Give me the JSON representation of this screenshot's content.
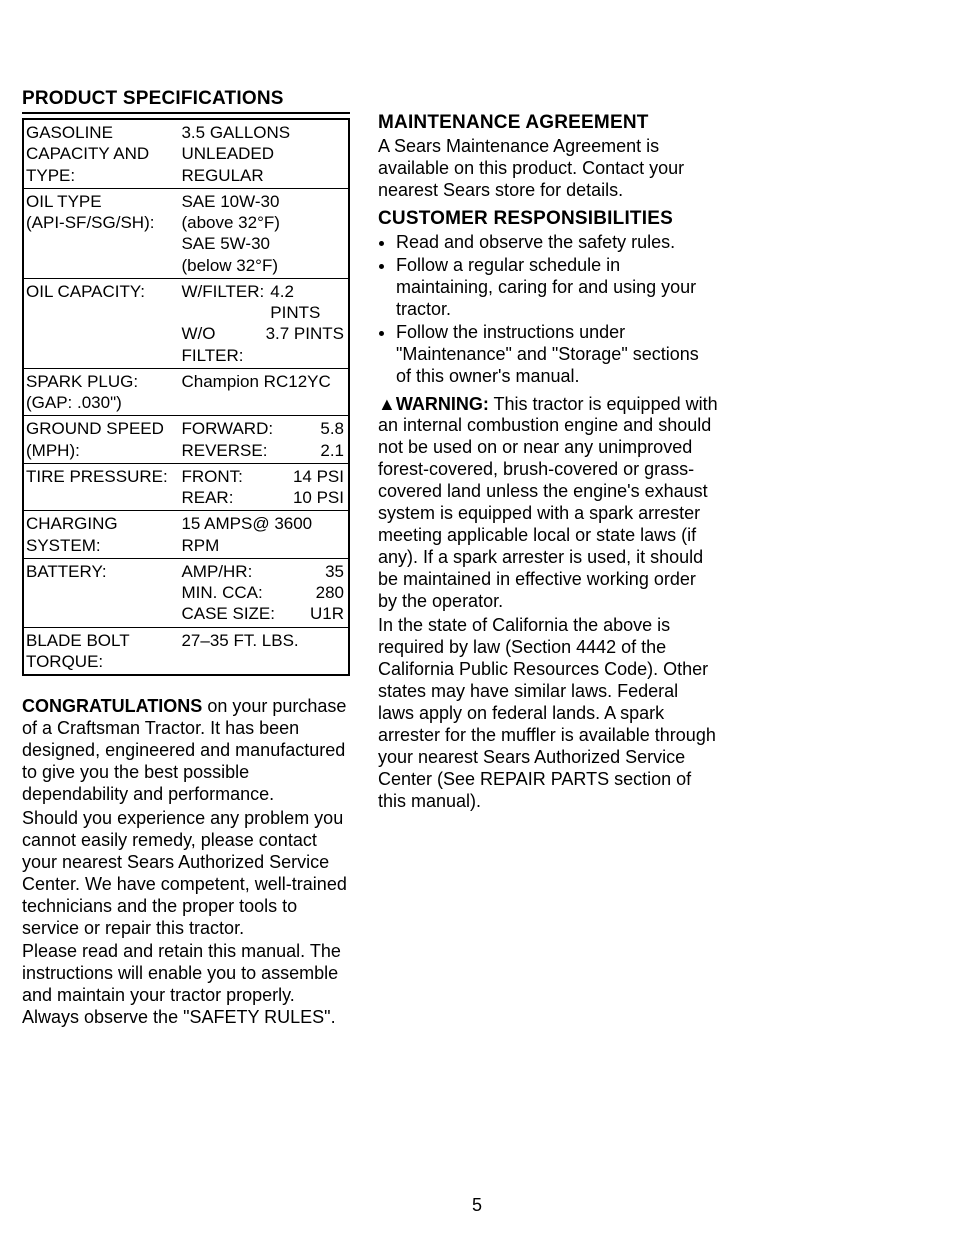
{
  "page_number": "5",
  "left": {
    "heading": "PRODUCT SPECIFICATIONS",
    "specs": [
      {
        "label": "GASOLINE CAPACITY AND TYPE:",
        "value": "3.5 GALLONS\nUNLEADED REGULAR"
      },
      {
        "label": "OIL TYPE\n(API-SF/SG/SH):",
        "value": "SAE 10W-30\n(above 32°F)\nSAE 5W-30\n(below 32°F)"
      },
      {
        "label": "OIL CAPACITY:",
        "value_kv": [
          {
            "k": "W/FILTER:",
            "v": "4.2 PINTS"
          },
          {
            "k": "W/O FILTER:",
            "v": "3.7 PINTS"
          }
        ]
      },
      {
        "label": "SPARK PLUG:\n(GAP: .030\")",
        "value": "Champion RC12YC"
      },
      {
        "label": "GROUND SPEED (MPH):",
        "value_kv": [
          {
            "k": "FORWARD:",
            "v": "5.8"
          },
          {
            "k": "REVERSE:",
            "v": "2.1"
          }
        ]
      },
      {
        "label": "TIRE PRESSURE:",
        "value_kv": [
          {
            "k": "FRONT:",
            "v": "14 PSI"
          },
          {
            "k": "REAR:",
            "v": "10 PSI"
          }
        ]
      },
      {
        "label": "CHARGING SYSTEM:",
        "value": "15 AMPS@ 3600 RPM"
      },
      {
        "label": "BATTERY:",
        "value_kv": [
          {
            "k": "AMP/HR:",
            "v": "35"
          },
          {
            "k": "MIN. CCA:",
            "v": "280"
          },
          {
            "k": "CASE SIZE:",
            "v": "U1R"
          }
        ]
      },
      {
        "label": "BLADE BOLT TORQUE:",
        "value": "27–35 FT. LBS."
      }
    ],
    "congrats_lead": "CONGRATULATIONS",
    "para1": " on your purchase of a Craftsman Tractor. It has been designed, engineered and manufactured to give you the best possible dependability and performance.",
    "para2": "Should you experience any problem you cannot easily remedy, please contact your nearest Sears Authorized Service Center. We have competent, well-trained technicians and the proper tools to service or repair this tractor.",
    "para3": "Please read and retain this manual. The instructions will enable you to assemble and maintain your tractor properly. Always observe the \"SAFETY RULES\"."
  },
  "right": {
    "maint_heading": "MAINTENANCE AGREEMENT",
    "maint_text": "A Sears Maintenance Agreement is available on this product. Contact your nearest Sears store for details.",
    "cust_heading": "CUSTOMER RESPONSIBILITIES",
    "bullets": [
      "Read and observe the safety rules.",
      "Follow a regular schedule in maintaining, caring for and using your tractor.",
      "Follow the instructions under \"Maintenance\" and \"Storage\" sections of this owner's manual."
    ],
    "warn_icon": "▲",
    "warn_label": "WARNING:",
    "warn_text": " This tractor is equipped with an internal combustion engine and should not be used on or near any unimproved forest-covered, brush-covered or grass-covered land unless the engine's exhaust system is equipped with a spark arrester meeting applicable local or state laws (if any). If a spark arrester is used, it should be maintained in effective working order by the operator.",
    "warn_text2": "In the state of California the above is required by law (Section 4442 of the California Public Resources Code). Other states may have similar laws. Federal laws apply on federal lands. A spark arrester for the muffler is available through your nearest Sears Authorized Service Center (See REPAIR PARTS section of this manual)."
  }
}
